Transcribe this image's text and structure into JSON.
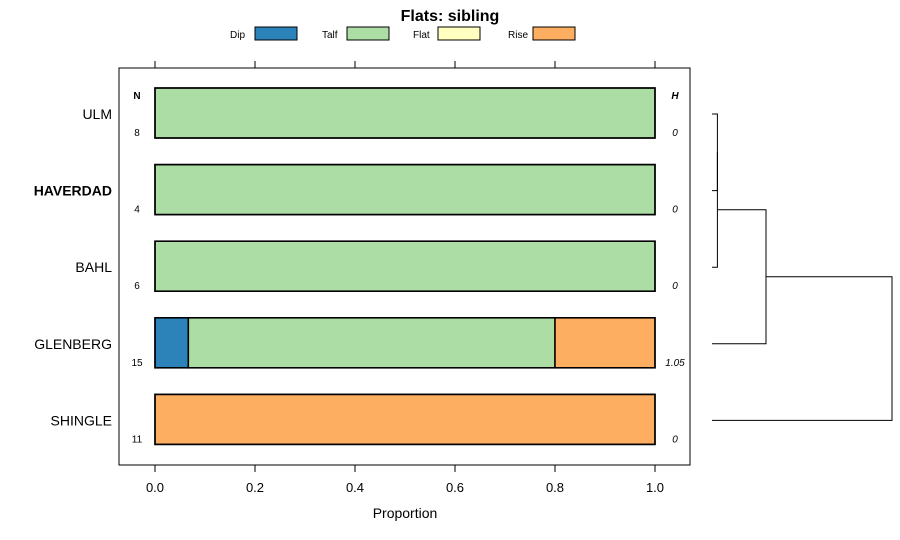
{
  "chart_data": {
    "type": "bar",
    "orientation": "horizontal",
    "stacked": true,
    "title": "Flats: sibling",
    "xlabel": "Proportion",
    "ylabel": "",
    "xlim": [
      -0.07,
      1.07
    ],
    "xticks": [
      "0.0",
      "0.2",
      "0.4",
      "0.6",
      "0.8",
      "1.0"
    ],
    "tick_values": [
      0,
      0.2,
      0.4,
      0.6,
      0.8,
      1.0
    ],
    "n_header": "N",
    "h_header": "H",
    "legend_position": "top",
    "categories": [
      {
        "label": "ULM",
        "bold": false,
        "n": "8",
        "h": "0"
      },
      {
        "label": "HAVERDAD",
        "bold": true,
        "n": "4",
        "h": "0"
      },
      {
        "label": "BAHL",
        "bold": false,
        "n": "6",
        "h": "0"
      },
      {
        "label": "GLENBERG",
        "bold": false,
        "n": "15",
        "h": "1.05"
      },
      {
        "label": "SHINGLE",
        "bold": false,
        "n": "11",
        "h": "0"
      }
    ],
    "series": [
      {
        "name": "Dip",
        "color": "#2b83ba",
        "values": [
          0,
          0,
          0,
          0.0667,
          0
        ]
      },
      {
        "name": "Talf",
        "color": "#abdda4",
        "values": [
          1,
          1,
          1,
          0.7333,
          0
        ]
      },
      {
        "name": "Flat",
        "color": "#ffffbf",
        "values": [
          0,
          0,
          0,
          0,
          0
        ]
      },
      {
        "name": "Rise",
        "color": "#fdae61",
        "values": [
          0,
          0,
          0,
          0.2,
          1
        ]
      }
    ],
    "dendrogram": {
      "merges": [
        {
          "a": 0,
          "b": 1,
          "height": 0.03
        },
        {
          "a": "m0",
          "b": 2,
          "height": 0.03
        },
        {
          "a": "m1",
          "b": 3,
          "height": 0.3
        },
        {
          "a": "m2",
          "b": 4,
          "height": 1.0
        }
      ]
    }
  }
}
